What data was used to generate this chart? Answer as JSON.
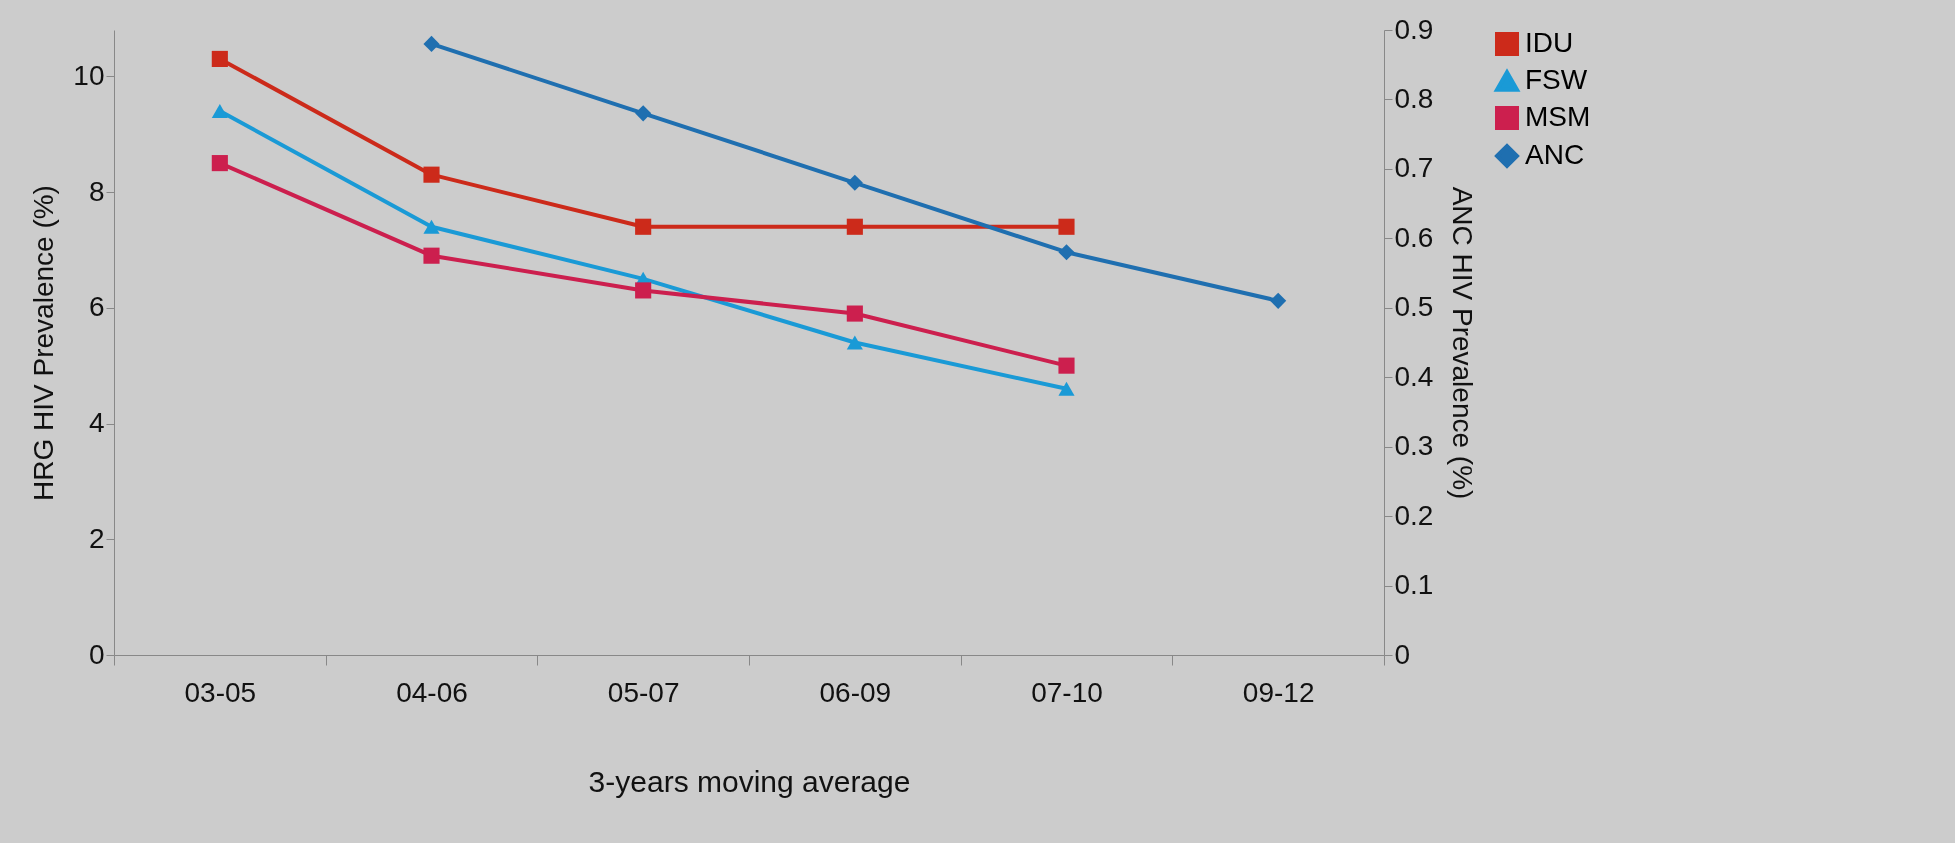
{
  "chart_data": {
    "type": "line",
    "xlabel": "3-years moving average",
    "ylabel": "HRG HIV Prevalence (%)",
    "y2label": "ANC HIV Prevalence (%)",
    "categories": [
      "03-05",
      "04-06",
      "05-07",
      "06-09",
      "07-10",
      "09-12"
    ],
    "ylim": [
      0,
      10.8
    ],
    "yticks": [
      0,
      2,
      4,
      6,
      8,
      10
    ],
    "y2lim": [
      0,
      0.9
    ],
    "y2ticks": [
      0,
      0.1,
      0.2,
      0.3,
      0.4,
      0.5,
      0.6,
      0.7,
      0.8,
      0.9
    ],
    "grid": false,
    "legend": "right",
    "series": [
      {
        "name": "IDU",
        "color": "#cc2a1a",
        "marker": "square",
        "values": [
          10.3,
          8.3,
          7.4,
          7.4,
          7.4,
          null
        ]
      },
      {
        "name": "FSW",
        "color": "#1a9ad6",
        "marker": "triangle",
        "values": [
          9.4,
          7.4,
          6.5,
          5.4,
          4.6,
          null
        ]
      },
      {
        "name": "MSM",
        "color": "#cc1f4e",
        "marker": "square",
        "values": [
          8.5,
          6.9,
          6.3,
          5.9,
          5.0,
          null
        ]
      },
      {
        "name": "ANC",
        "color": "#1f6fb0",
        "marker": "diamond",
        "axis": "y2",
        "values": [
          null,
          0.88,
          0.78,
          0.68,
          0.58,
          0.51
        ]
      }
    ]
  }
}
